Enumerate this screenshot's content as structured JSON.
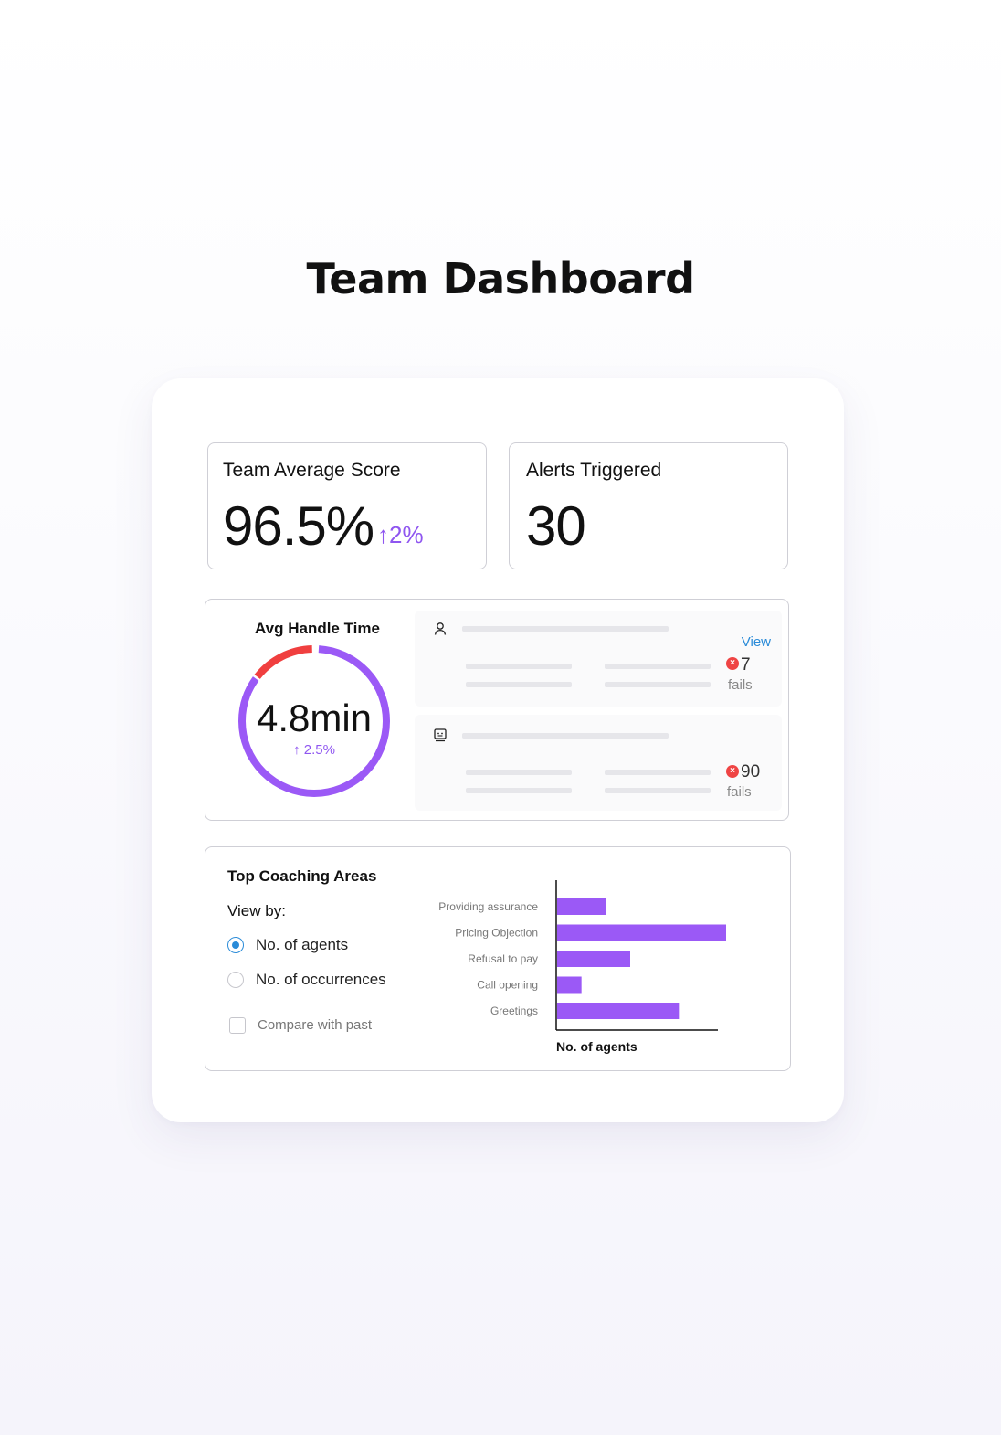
{
  "page": {
    "title": "Team Dashboard"
  },
  "kpis": {
    "average_score": {
      "title": "Team Average Score",
      "value": "96.5%",
      "delta": "↑2%"
    },
    "alerts": {
      "title": "Alerts Triggered",
      "value": "30"
    }
  },
  "handle_time": {
    "title": "Avg Handle Time",
    "value": "4.8min",
    "delta": "↑ 2.5%",
    "ring_fraction_red": 0.14,
    "colors": {
      "primary": "#9b59f6",
      "alert": "#f03f3f"
    },
    "panels": [
      {
        "icon": "user-icon",
        "link": "View",
        "fails_count": "7",
        "fails_label": "fails"
      },
      {
        "icon": "agent-bot-icon",
        "fails_count": "90",
        "fails_label": "fails"
      }
    ]
  },
  "coaching": {
    "title": "Top Coaching Areas",
    "view_by_label": "View by:",
    "options": [
      {
        "label": "No. of agents",
        "selected": true
      },
      {
        "label": "No. of occurrences",
        "selected": false
      }
    ],
    "compare_label": "Compare with past"
  },
  "chart_data": {
    "type": "bar",
    "orientation": "horizontal",
    "categories": [
      "Providing assurance",
      "Pricing Objection",
      "Refusal to pay",
      "Call opening",
      "Greetings"
    ],
    "values": [
      4,
      14,
      6,
      2,
      10
    ],
    "xlabel": "No. of agents",
    "xlim": [
      0,
      15
    ],
    "bar_color": "#9b59f6",
    "grid": false
  }
}
